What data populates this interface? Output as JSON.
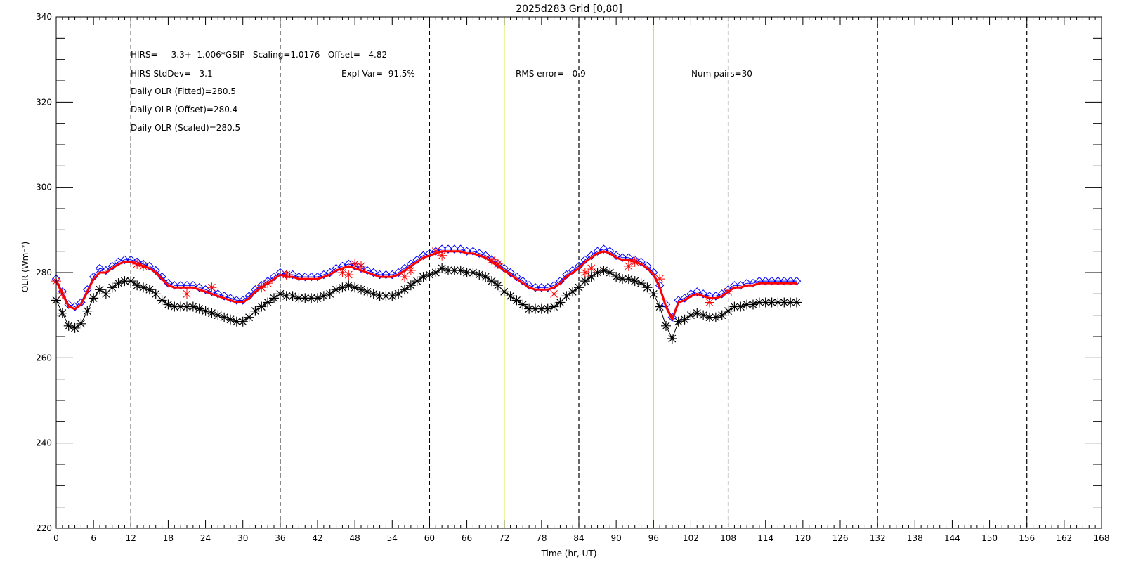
{
  "chart_data": {
    "type": "line",
    "title": "2025d283 Grid [0,80]",
    "xlabel": "Time (hr, UT)",
    "ylabel": "OLR (Wm⁻²)",
    "xlim": [
      0,
      168
    ],
    "ylim": [
      220,
      340
    ],
    "x_ticks": [
      0,
      6,
      12,
      18,
      24,
      30,
      36,
      42,
      48,
      54,
      60,
      66,
      72,
      78,
      84,
      90,
      96,
      102,
      108,
      114,
      120,
      126,
      132,
      138,
      144,
      150,
      156,
      162,
      168
    ],
    "y_ticks": [
      220,
      240,
      260,
      280,
      300,
      320,
      340
    ],
    "dashed_vlines": [
      12,
      36,
      60,
      84,
      108,
      132,
      156
    ],
    "green_vlines": [
      72,
      96
    ],
    "annotations": {
      "fit_eq": "HIRS=     3.3+  1.006*GSIP   Scaling=1.0176   Offset=   4.82",
      "stddev": "HIRS StdDev=   3.1",
      "expl_var": "Expl Var=  91.5%",
      "rms": "RMS error=   0.9",
      "num_pairs": "Num pairs=30",
      "daily_fitted": "Daily OLR (Fitted)=280.5",
      "daily_offset": "Daily OLR (Offset)=280.4",
      "daily_scaled": "Daily OLR (Scaled)=280.5"
    },
    "series": [
      {
        "color": "#000000",
        "marker": "asterisk",
        "x": [
          0,
          1,
          2,
          3,
          4,
          5,
          6,
          7,
          8,
          9,
          10,
          11,
          12,
          13,
          14,
          15,
          16,
          17,
          18,
          19,
          20,
          21,
          22,
          23,
          24,
          25,
          26,
          27,
          28,
          29,
          30,
          31,
          32,
          33,
          34,
          35,
          36,
          37,
          38,
          39,
          40,
          41,
          42,
          43,
          44,
          45,
          46,
          47,
          48,
          49,
          50,
          51,
          52,
          53,
          54,
          55,
          56,
          57,
          58,
          59,
          60,
          61,
          62,
          63,
          64,
          65,
          66,
          67,
          68,
          69,
          70,
          71,
          72,
          73,
          74,
          75,
          76,
          77,
          78,
          79,
          80,
          81,
          82,
          83,
          84,
          85,
          86,
          87,
          88,
          89,
          90,
          91,
          92,
          93,
          94,
          95,
          96,
          97,
          98,
          99,
          100,
          101,
          102,
          103,
          104,
          105,
          106,
          107,
          108,
          109,
          110,
          111,
          112,
          113,
          114,
          115,
          116,
          117,
          118,
          119
        ],
        "y": [
          273.5,
          270.5,
          267.5,
          267,
          268,
          271,
          274,
          276,
          275,
          276.5,
          277.5,
          278,
          278,
          277,
          276.5,
          276,
          275,
          273.5,
          272.5,
          272,
          272,
          272,
          272,
          271.5,
          271,
          270.5,
          270,
          269.5,
          269,
          268.5,
          268.5,
          269.5,
          271,
          272,
          273,
          274,
          275,
          274.5,
          274.5,
          274,
          274,
          274,
          274,
          274.5,
          275,
          276,
          276.5,
          277,
          276.5,
          276,
          275.5,
          275,
          274.5,
          274.5,
          274.5,
          275,
          276,
          277,
          278,
          279,
          279.5,
          280,
          281,
          280.5,
          280.5,
          280.5,
          280,
          280,
          279.5,
          279,
          278,
          277,
          275.5,
          274.5,
          273.5,
          272.5,
          271.5,
          271.5,
          271.5,
          271.5,
          272,
          273,
          274.5,
          275.5,
          276.5,
          278,
          279,
          280,
          280.5,
          280,
          279,
          278.5,
          278.5,
          278,
          277.5,
          276.5,
          275,
          272,
          267.5,
          264.5,
          268.5,
          269,
          270,
          270.5,
          270,
          269.5,
          269.5,
          270,
          271,
          272,
          272,
          272.5,
          272.5,
          273,
          273,
          273,
          273,
          273,
          273,
          273
        ]
      },
      {
        "color": "#0000ff",
        "marker": "diamond",
        "x": [
          0,
          1,
          2,
          3,
          4,
          5,
          6,
          7,
          8,
          9,
          10,
          11,
          12,
          13,
          14,
          15,
          16,
          17,
          18,
          19,
          20,
          21,
          22,
          23,
          24,
          25,
          26,
          27,
          28,
          29,
          30,
          31,
          32,
          33,
          34,
          35,
          36,
          37,
          38,
          39,
          40,
          41,
          42,
          43,
          44,
          45,
          46,
          47,
          48,
          49,
          50,
          51,
          52,
          53,
          54,
          55,
          56,
          57,
          58,
          59,
          60,
          61,
          62,
          63,
          64,
          65,
          66,
          67,
          68,
          69,
          70,
          71,
          72,
          73,
          74,
          75,
          76,
          77,
          78,
          79,
          80,
          81,
          82,
          83,
          84,
          85,
          86,
          87,
          88,
          89,
          90,
          91,
          92,
          93,
          94,
          95,
          96,
          97,
          98,
          99,
          100,
          101,
          102,
          103,
          104,
          105,
          106,
          107,
          108,
          109,
          110,
          111,
          112,
          113,
          114,
          115,
          116,
          117,
          118,
          119
        ],
        "y": [
          278.5,
          275.5,
          272.5,
          272,
          273,
          276,
          279,
          281,
          280.5,
          281.5,
          282.5,
          283,
          283,
          282.5,
          282,
          281.5,
          280.5,
          279,
          277.5,
          277,
          277,
          277,
          277,
          276.5,
          276,
          275.5,
          275,
          274.5,
          274,
          273.5,
          273.5,
          274.5,
          276,
          277,
          278,
          279,
          280,
          279.5,
          279.5,
          279,
          279,
          279,
          279,
          279.5,
          280,
          281,
          281.5,
          282,
          281.5,
          281,
          280.5,
          280,
          279.5,
          279.5,
          279.5,
          280,
          281,
          282,
          283,
          284,
          284.5,
          285,
          285.5,
          285.5,
          285.5,
          285.5,
          285,
          285,
          284.5,
          284,
          283,
          282,
          281,
          280,
          279,
          278,
          277,
          276.5,
          276.5,
          276.5,
          277,
          278,
          279.5,
          280.5,
          281.5,
          283,
          284,
          285,
          285.5,
          285,
          284,
          283.5,
          283.5,
          283,
          282.5,
          281.5,
          280,
          277,
          272.5,
          269.5,
          273.5,
          274,
          275,
          275.5,
          275,
          274.5,
          274.5,
          275,
          276,
          277,
          277,
          277.5,
          277.5,
          278,
          278,
          278,
          278,
          278,
          278,
          278
        ]
      },
      {
        "color": "#ff0000",
        "marker": "line-with-asterisks",
        "x": [
          0,
          1,
          2,
          3,
          4,
          5,
          6,
          7,
          8,
          9,
          10,
          11,
          12,
          13,
          14,
          15,
          16,
          17,
          18,
          19,
          20,
          21,
          22,
          23,
          24,
          25,
          26,
          27,
          28,
          29,
          30,
          31,
          32,
          33,
          34,
          35,
          36,
          37,
          38,
          39,
          40,
          41,
          42,
          43,
          44,
          45,
          46,
          47,
          48,
          49,
          50,
          51,
          52,
          53,
          54,
          55,
          56,
          57,
          58,
          59,
          60,
          61,
          62,
          63,
          64,
          65,
          66,
          67,
          68,
          69,
          70,
          71,
          72,
          73,
          74,
          75,
          76,
          77,
          78,
          79,
          80,
          81,
          82,
          83,
          84,
          85,
          86,
          87,
          88,
          89,
          90,
          91,
          92,
          93,
          94,
          95,
          96,
          97,
          98,
          99,
          100,
          101,
          102,
          103,
          104,
          105,
          106,
          107,
          108,
          109,
          110,
          111,
          112,
          113,
          114,
          115,
          116,
          117,
          118,
          119
        ],
        "y": [
          278,
          275,
          272,
          271.5,
          272.5,
          275.5,
          278.5,
          280,
          280,
          281,
          282,
          282.5,
          282.5,
          282,
          281.5,
          281,
          280,
          278.5,
          277,
          276.5,
          276.5,
          276.5,
          276.5,
          276,
          275.5,
          275,
          274.5,
          274,
          273.5,
          273,
          273,
          274,
          275.5,
          276.5,
          277.5,
          278.5,
          279.5,
          279,
          279,
          278.5,
          278.5,
          278.5,
          278.5,
          279,
          279.5,
          280.5,
          281,
          281.5,
          281,
          280.5,
          280,
          279.5,
          279,
          279,
          279,
          279.5,
          280.5,
          281.5,
          282.5,
          283.5,
          284,
          284.5,
          285,
          285,
          285,
          285,
          284.5,
          284.5,
          284,
          283.5,
          282.5,
          281.5,
          280.5,
          279.5,
          278.5,
          277.5,
          276.5,
          276,
          276,
          276,
          276.5,
          277.5,
          279,
          280,
          281,
          282.5,
          283.5,
          284.5,
          285,
          284.5,
          283.5,
          283,
          283,
          282.5,
          282,
          281,
          279.5,
          276.5,
          272,
          269,
          273,
          273.5,
          274.5,
          275,
          274.5,
          274,
          274,
          274.5,
          275.5,
          276.5,
          276.5,
          277,
          277,
          277.5,
          277.5,
          277.5,
          277.5,
          277.5,
          277.5,
          277.5
        ],
        "marker_x": [
          0,
          1,
          13,
          14,
          21,
          25,
          33,
          34,
          37,
          46,
          47,
          48,
          49,
          56,
          57,
          61,
          62,
          70,
          71,
          80,
          85,
          86,
          92,
          93,
          97,
          105,
          108
        ],
        "marker_y": [
          278,
          275,
          282,
          281.5,
          275,
          276.5,
          276.5,
          277.5,
          279.5,
          280,
          279.5,
          282,
          281.5,
          279,
          280.5,
          285,
          284,
          283,
          282,
          275,
          280,
          281,
          281.5,
          282.5,
          278.5,
          273,
          275.5
        ]
      }
    ]
  }
}
